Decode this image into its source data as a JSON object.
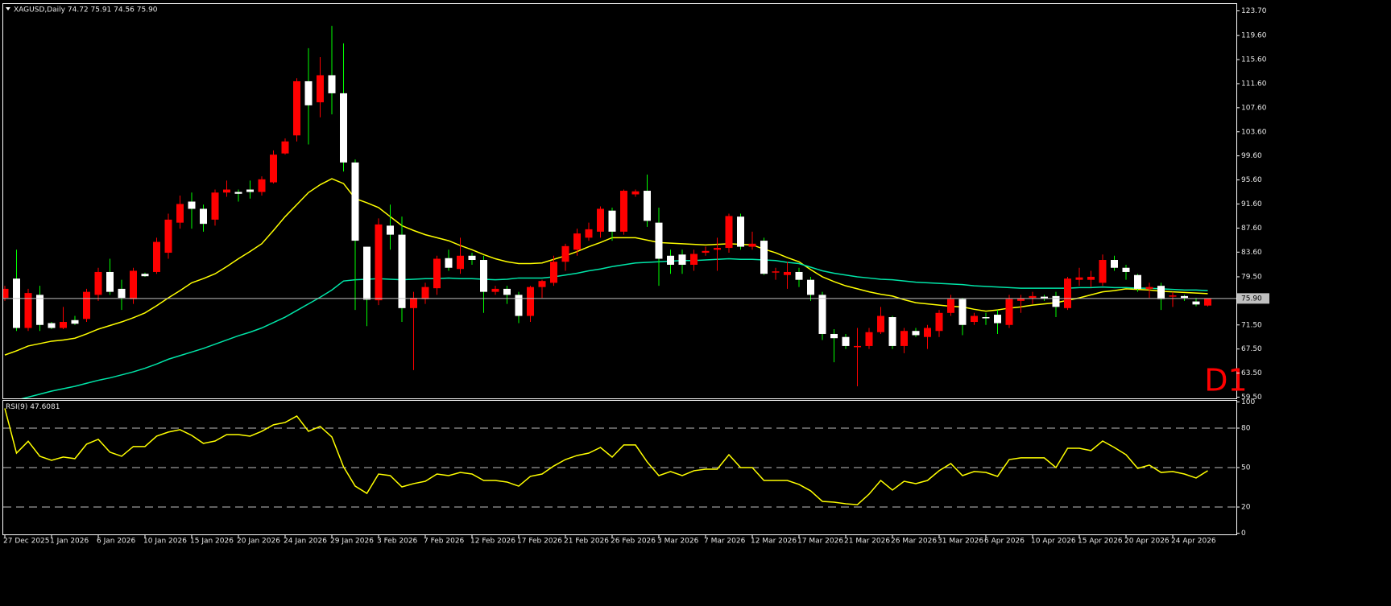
{
  "chart_data": [
    {
      "type": "candlestick",
      "title": "XAGUSD,Daily",
      "quote": "74.72 75.91 74.56 75.90",
      "annotation": "D1",
      "categories": [
        "27 Dec 2025",
        null,
        null,
        null,
        "1 Jan 2026",
        null,
        null,
        null,
        "6 Jan 2026",
        null,
        null,
        null,
        "10 Jan 2026",
        null,
        null,
        null,
        "15 Jan 2026",
        null,
        null,
        null,
        "20 Jan 2026",
        null,
        null,
        null,
        "24 Jan 2026",
        null,
        null,
        null,
        "29 Jan 2026",
        null,
        null,
        null,
        "3 Feb 2026",
        null,
        null,
        null,
        "7 Feb 2026",
        null,
        null,
        null,
        "12 Feb 2026",
        null,
        null,
        null,
        "17 Feb 2026",
        null,
        null,
        null,
        "21 Feb 2026",
        null,
        null,
        null,
        "26 Feb 2026",
        null,
        null,
        null,
        "3 Mar 2026",
        null,
        null,
        null,
        "7 Mar 2026",
        null,
        null,
        null,
        "12 Mar 2026",
        null,
        null,
        null,
        "17 Mar 2026",
        null,
        null,
        null,
        "21 Mar 2026",
        null,
        null,
        null,
        "26 Mar 2026",
        null,
        null,
        null,
        "31 Mar 2026",
        null,
        null,
        null,
        "6 Apr 2026",
        null,
        null,
        null,
        "10 Apr 2026",
        null,
        null,
        null,
        "15 Apr 2026",
        null,
        null,
        null,
        "20 Apr 2026",
        null,
        null,
        null,
        "24 Apr 2026",
        null,
        null,
        null
      ],
      "open": [
        76,
        79.2,
        71,
        76.5,
        71.8,
        71,
        72.3,
        72.5,
        76.5,
        80.3,
        77.5,
        75.8,
        80,
        80.3,
        83.5,
        88.5,
        92,
        90.8,
        89,
        93.5,
        93.6,
        94,
        93.6,
        95.2,
        100,
        103,
        112,
        108.5,
        113,
        110,
        98.5,
        84.5,
        75.6,
        88,
        86.5,
        74.3,
        75.8,
        77.6,
        82.6,
        80.8,
        83,
        82.3,
        77,
        77.5,
        76.5,
        73,
        77.8,
        78.5,
        82,
        84,
        86,
        87,
        90.5,
        87,
        93.2,
        93.8,
        88.5,
        83,
        83.2,
        81.5,
        83.5,
        84,
        84.3,
        89.5,
        84.5,
        85.5,
        80.2,
        79.8,
        80.3,
        79,
        76.5,
        70,
        69.5,
        67.8,
        68,
        70.3,
        72.8,
        68,
        70.5,
        69.5,
        70.5,
        73.5,
        75.8,
        72,
        72.8,
        73.2,
        71.5,
        75.5,
        76,
        76.2,
        76.3,
        74.3,
        79,
        79,
        78.5,
        82.3,
        81,
        79.8,
        77.5,
        78,
        76.2,
        76.3,
        75.4,
        74.72
      ],
      "high": [
        78,
        84,
        77.5,
        78,
        72,
        74.5,
        73,
        77.5,
        81,
        82.5,
        79,
        81,
        80.2,
        86,
        90,
        93,
        93.5,
        91.5,
        94,
        95.5,
        94,
        95.5,
        96.2,
        100.5,
        102.5,
        112.5,
        117.5,
        116,
        121.2,
        118.3,
        99,
        84.5,
        89.2,
        91.5,
        89.5,
        77,
        78.5,
        83,
        84,
        86,
        83.5,
        83,
        78,
        78,
        77,
        78,
        79,
        83,
        85,
        87.5,
        88.5,
        91.2,
        91,
        94,
        94,
        96.5,
        91,
        84,
        84,
        84,
        84.5,
        86,
        90,
        90,
        87,
        86,
        81,
        82,
        81,
        79.5,
        77,
        70.8,
        70,
        71,
        71,
        74.5,
        73,
        71,
        71,
        71.5,
        74,
        76.5,
        76,
        73.5,
        73.5,
        74,
        76.5,
        76.5,
        77,
        76.5,
        77,
        79.5,
        81,
        80.5,
        83.2,
        83,
        81.5,
        80,
        78.5,
        78.5,
        77,
        76.5,
        76,
        75.91
      ],
      "low": [
        75.5,
        70.5,
        70.5,
        70.5,
        70.8,
        70.8,
        71.5,
        72,
        75.5,
        76.5,
        74,
        75,
        79.5,
        80,
        82.5,
        87.5,
        87.5,
        87,
        88,
        92.8,
        92,
        92.5,
        93,
        95,
        99.8,
        102,
        101.5,
        106,
        106.5,
        97,
        74,
        71.3,
        74.8,
        84,
        72,
        64,
        75,
        76.5,
        80.5,
        80,
        81.5,
        73.5,
        76.5,
        75,
        71.8,
        72,
        76,
        78,
        80.5,
        83,
        85.5,
        86,
        85.5,
        86.5,
        92.8,
        87.8,
        78,
        80,
        80,
        80.5,
        83,
        80.5,
        83.5,
        84,
        84,
        79.8,
        79,
        77.5,
        77.8,
        75.5,
        69,
        65.3,
        67.5,
        61.3,
        67.5,
        70,
        67.5,
        66.8,
        69.5,
        67.5,
        69.5,
        73,
        69.8,
        71.5,
        71.5,
        70,
        71,
        73.5,
        75,
        75.5,
        72.8,
        74,
        78,
        77.8,
        78,
        80.5,
        79,
        77,
        76,
        74,
        74.5,
        75.5,
        74.6,
        74.56
      ],
      "close": [
        77.5,
        71,
        76.8,
        71.5,
        71,
        72,
        71.7,
        77,
        80.3,
        77,
        76,
        80.5,
        79.6,
        85.3,
        89,
        91.6,
        90.8,
        88.3,
        93.5,
        94,
        93.3,
        93.6,
        95.7,
        99.8,
        102,
        112,
        108,
        113,
        110,
        98.5,
        85.5,
        75.7,
        88.2,
        86.5,
        74.3,
        76,
        77.8,
        82.5,
        81,
        83,
        82.3,
        77,
        77.5,
        76.5,
        73,
        77.8,
        78.8,
        82,
        84.6,
        86.7,
        87.4,
        90.8,
        87,
        93.8,
        93.7,
        88.8,
        82.5,
        81.5,
        81.5,
        83.3,
        83.8,
        84.3,
        89.6,
        84.5,
        85,
        80,
        80.4,
        80.3,
        79,
        76.5,
        70,
        69.3,
        68,
        68,
        70.3,
        73,
        68,
        70.5,
        69.8,
        71,
        73.5,
        75.8,
        71.5,
        73,
        72.6,
        71.8,
        75.8,
        75.9,
        76.3,
        75.9,
        74.5,
        79.2,
        79.4,
        79.5,
        82.3,
        81,
        80.3,
        77.5,
        77.8,
        75.8,
        76.4,
        76,
        74.9,
        75.9
      ],
      "up_color": "#ff0000",
      "down_color": "#ffffff",
      "up_wick_color": "#ff0000",
      "down_wick_color": "#00ff00",
      "lines": [
        {
          "color": "#ffff00",
          "values": [
            66.5,
            67.2,
            68,
            68.4,
            68.8,
            69.0,
            69.3,
            70.0,
            70.8,
            71.4,
            72,
            72.7,
            73.5,
            74.7,
            76,
            77.2,
            78.5,
            79.2,
            80,
            81.2,
            82.5,
            83.7,
            85,
            87.2,
            89.5,
            91.5,
            93.5,
            94.8,
            95.8,
            95,
            92.5,
            91.8,
            91,
            89.5,
            88,
            87.2,
            86.5,
            86,
            85.5,
            84.7,
            84,
            83.2,
            82.5,
            82,
            81.7,
            81.7,
            81.8,
            82.4,
            83,
            83.7,
            84.5,
            85.2,
            86,
            86,
            86,
            85.6,
            85.2,
            85.1,
            85,
            84.9,
            84.8,
            84.9,
            85,
            84.9,
            84.8,
            84.1,
            83.5,
            82.7,
            82,
            80.7,
            79.5,
            78.7,
            78,
            77.5,
            77,
            76.6,
            76.3,
            75.7,
            75.2,
            75,
            74.8,
            74.6,
            74.5,
            74.1,
            73.8,
            74,
            74.3,
            74.5,
            74.8,
            75,
            75.2,
            75.6,
            76,
            76.5,
            77,
            77.2,
            77.5,
            77.4,
            77.3,
            77.1,
            77,
            76.9,
            76.8,
            76.7
          ]
        },
        {
          "color": "#00e5a8",
          "values": [
            58.6,
            59,
            59.5,
            60,
            60.5,
            60.9,
            61.3,
            61.8,
            62.3,
            62.7,
            63.2,
            63.7,
            64.3,
            65,
            65.8,
            66.4,
            67,
            67.6,
            68.3,
            69,
            69.7,
            70.3,
            71,
            71.9,
            72.8,
            73.9,
            75,
            76.1,
            77.3,
            78.8,
            79,
            79.1,
            79.2,
            79.1,
            79,
            79.1,
            79.2,
            79.2,
            79.3,
            79.2,
            79.2,
            79.1,
            79,
            79.1,
            79.3,
            79.3,
            79.3,
            79.5,
            79.8,
            80.1,
            80.5,
            80.8,
            81.2,
            81.5,
            81.8,
            81.9,
            82,
            82.1,
            82.2,
            82.2,
            82.3,
            82.4,
            82.5,
            82.4,
            82.4,
            82.3,
            82.2,
            81.9,
            81.7,
            81.1,
            80.5,
            80.1,
            79.8,
            79.5,
            79.3,
            79.1,
            79,
            78.8,
            78.6,
            78.5,
            78.4,
            78.3,
            78.2,
            78,
            77.9,
            77.8,
            77.7,
            77.6,
            77.6,
            77.6,
            77.6,
            77.6,
            77.7,
            77.7,
            77.8,
            77.7,
            77.7,
            77.6,
            77.6,
            77.5,
            77.4,
            77.3,
            77.3,
            77.2
          ]
        }
      ],
      "price_line": {
        "value": 75.9,
        "label": "75.90"
      },
      "price_line_color": "#c0c0c0",
      "ylim": [
        59.23,
        124.9
      ],
      "yticks": [
        {
          "value": 123.7,
          "label": "123.70"
        },
        {
          "value": 119.6,
          "label": "119.60"
        },
        {
          "value": 115.6,
          "label": "115.60"
        },
        {
          "value": 111.6,
          "label": "111.60"
        },
        {
          "value": 107.6,
          "label": "107.60"
        },
        {
          "value": 103.6,
          "label": "103.60"
        },
        {
          "value": 99.6,
          "label": "99.60"
        },
        {
          "value": 95.6,
          "label": "95.60"
        },
        {
          "value": 91.6,
          "label": "91.60"
        },
        {
          "value": 87.6,
          "label": "87.60"
        },
        {
          "value": 83.6,
          "label": "83.60"
        },
        {
          "value": 79.5,
          "label": "79.50"
        },
        {
          "value": 71.5,
          "label": "71.50"
        },
        {
          "value": 67.5,
          "label": "67.50"
        },
        {
          "value": 63.5,
          "label": "63.50"
        },
        {
          "value": 59.5,
          "label": "59.50"
        }
      ]
    },
    {
      "type": "line",
      "title": "RSI(9)",
      "current": 47.6081,
      "color": "#ffff00",
      "values": [
        95,
        61,
        70,
        58.6,
        55.5,
        58,
        56.8,
        67.8,
        71.5,
        61.7,
        58.6,
        66,
        66,
        73.9,
        77,
        78.8,
        74.5,
        68.4,
        70.2,
        75.1,
        75.1,
        73.9,
        77.6,
        82.5,
        84.3,
        89.2,
        77.6,
        81.3,
        73.3,
        50.6,
        35.9,
        30.4,
        45.1,
        43.9,
        35.3,
        37.8,
        39.6,
        45.1,
        43.9,
        46.3,
        45.1,
        40.2,
        40.2,
        39,
        35.9,
        43.3,
        45.1,
        51.2,
        56.1,
        59.2,
        61,
        65.3,
        58,
        67.2,
        67.2,
        54.3,
        43.9,
        47,
        43.9,
        47.6,
        48.8,
        48.8,
        59.8,
        50,
        50,
        40.2,
        40.2,
        40.2,
        37.2,
        32.3,
        24.3,
        23.7,
        22.5,
        21.8,
        29.8,
        40.2,
        32.9,
        39.6,
        37.8,
        40.2,
        47.6,
        53.1,
        43.9,
        47,
        46.3,
        43.3,
        56.1,
        57.4,
        57.4,
        57.4,
        50,
        64.7,
        64.7,
        62.9,
        70.2,
        65.3,
        59.8,
        49.4,
        51.9,
        46.3,
        47,
        45.1,
        42.1,
        47.6081
      ],
      "ylim": [
        0,
        100
      ],
      "yticks": [
        100,
        80,
        50,
        20,
        0
      ],
      "levels": [
        80,
        50,
        20
      ],
      "level_color": "#c0c0c0"
    }
  ]
}
